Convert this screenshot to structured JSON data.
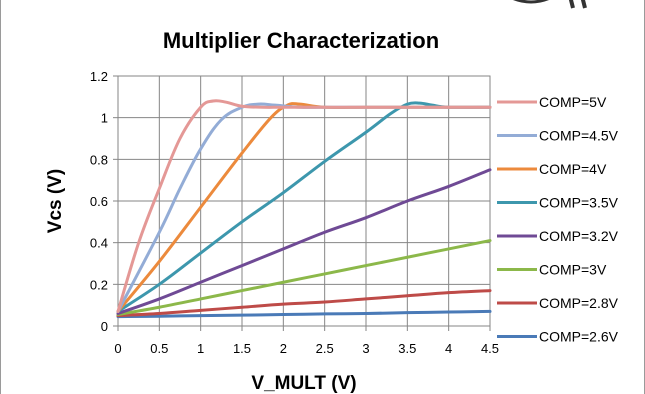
{
  "chart_data": {
    "type": "line",
    "title": "Multiplier Characterization",
    "xlabel": "V_MULT (V)",
    "ylabel": "Vcs (V)",
    "xlim": [
      0,
      4.5
    ],
    "ylim": [
      0,
      1.2
    ],
    "x_ticks": [
      "0",
      "0.5",
      "1",
      "1.5",
      "2",
      "2.5",
      "3",
      "3.5",
      "4",
      "4.5"
    ],
    "y_ticks": [
      "0",
      "0.2",
      "0.4",
      "0.6",
      "0.8",
      "1",
      "1.2"
    ],
    "grid": true,
    "legend_position": "right",
    "series": [
      {
        "name": "COMP=5V",
        "color": "#e49896",
        "points": [
          [
            0,
            0.07
          ],
          [
            0.25,
            0.4
          ],
          [
            0.5,
            0.66
          ],
          [
            0.75,
            0.9
          ],
          [
            1.0,
            1.05
          ],
          [
            1.15,
            1.08
          ],
          [
            1.3,
            1.075
          ],
          [
            1.5,
            1.055
          ],
          [
            1.75,
            1.05
          ],
          [
            2.0,
            1.05
          ],
          [
            2.5,
            1.05
          ],
          [
            3.0,
            1.05
          ],
          [
            3.5,
            1.05
          ],
          [
            4.0,
            1.05
          ],
          [
            4.5,
            1.05
          ]
        ]
      },
      {
        "name": "COMP=4.5V",
        "color": "#93acd6",
        "points": [
          [
            0,
            0.07
          ],
          [
            0.5,
            0.45
          ],
          [
            0.75,
            0.66
          ],
          [
            1.0,
            0.85
          ],
          [
            1.25,
            0.99
          ],
          [
            1.5,
            1.05
          ],
          [
            1.7,
            1.065
          ],
          [
            1.9,
            1.06
          ],
          [
            2.2,
            1.05
          ],
          [
            2.5,
            1.05
          ],
          [
            3.0,
            1.05
          ],
          [
            3.5,
            1.05
          ],
          [
            4.0,
            1.05
          ],
          [
            4.5,
            1.05
          ]
        ]
      },
      {
        "name": "COMP=4V",
        "color": "#ec8a3c",
        "points": [
          [
            0,
            0.07
          ],
          [
            0.5,
            0.31
          ],
          [
            1.0,
            0.57
          ],
          [
            1.5,
            0.83
          ],
          [
            1.85,
            1.0
          ],
          [
            2.05,
            1.06
          ],
          [
            2.2,
            1.065
          ],
          [
            2.5,
            1.05
          ],
          [
            3.0,
            1.05
          ],
          [
            3.5,
            1.05
          ],
          [
            4.0,
            1.05
          ],
          [
            4.5,
            1.05
          ]
        ]
      },
      {
        "name": "COMP=3.5V",
        "color": "#3d97ad",
        "points": [
          [
            0,
            0.07
          ],
          [
            0.5,
            0.2
          ],
          [
            1.0,
            0.35
          ],
          [
            1.5,
            0.5
          ],
          [
            2.0,
            0.64
          ],
          [
            2.5,
            0.79
          ],
          [
            3.0,
            0.93
          ],
          [
            3.3,
            1.02
          ],
          [
            3.5,
            1.065
          ],
          [
            3.65,
            1.07
          ],
          [
            3.8,
            1.06
          ],
          [
            4.0,
            1.05
          ],
          [
            4.5,
            1.05
          ]
        ]
      },
      {
        "name": "COMP=3.2V",
        "color": "#6f4a95",
        "points": [
          [
            0,
            0.06
          ],
          [
            0.5,
            0.13
          ],
          [
            1.0,
            0.21
          ],
          [
            1.5,
            0.29
          ],
          [
            2.0,
            0.37
          ],
          [
            2.5,
            0.45
          ],
          [
            3.0,
            0.52
          ],
          [
            3.5,
            0.6
          ],
          [
            4.0,
            0.67
          ],
          [
            4.5,
            0.75
          ]
        ]
      },
      {
        "name": "COMP=3V",
        "color": "#8cb84a",
        "points": [
          [
            0,
            0.055
          ],
          [
            0.5,
            0.09
          ],
          [
            1.0,
            0.13
          ],
          [
            1.5,
            0.17
          ],
          [
            2.0,
            0.21
          ],
          [
            2.5,
            0.25
          ],
          [
            3.0,
            0.29
          ],
          [
            3.5,
            0.33
          ],
          [
            4.0,
            0.37
          ],
          [
            4.5,
            0.41
          ]
        ]
      },
      {
        "name": "COMP=2.8V",
        "color": "#be4b48",
        "points": [
          [
            0,
            0.05
          ],
          [
            0.5,
            0.06
          ],
          [
            1.0,
            0.075
          ],
          [
            1.5,
            0.09
          ],
          [
            2.0,
            0.105
          ],
          [
            2.5,
            0.115
          ],
          [
            3.0,
            0.13
          ],
          [
            3.5,
            0.145
          ],
          [
            4.0,
            0.16
          ],
          [
            4.5,
            0.17
          ]
        ]
      },
      {
        "name": "COMP=2.6V",
        "color": "#4a7ab7",
        "points": [
          [
            0,
            0.045
          ],
          [
            0.5,
            0.047
          ],
          [
            1.0,
            0.05
          ],
          [
            1.5,
            0.052
          ],
          [
            2.0,
            0.055
          ],
          [
            2.5,
            0.058
          ],
          [
            3.0,
            0.06
          ],
          [
            3.5,
            0.064
          ],
          [
            4.0,
            0.067
          ],
          [
            4.5,
            0.07
          ]
        ]
      }
    ]
  }
}
